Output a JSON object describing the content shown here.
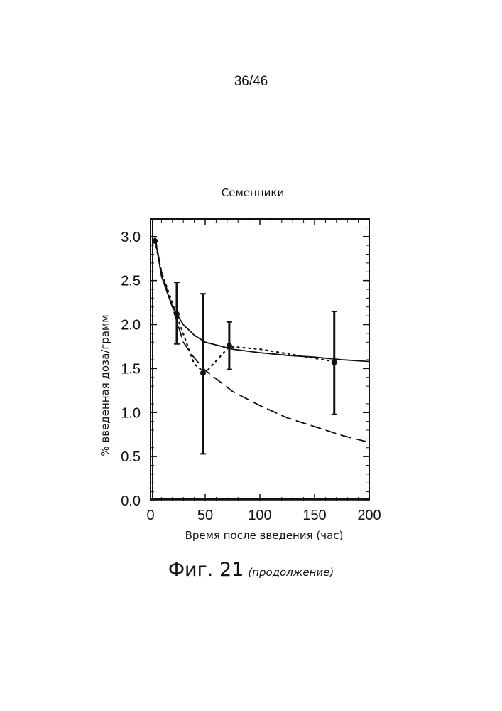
{
  "page": {
    "page_number": "36/46",
    "caption_figure": "Фиг. 21",
    "caption_note": "(продолжение)"
  },
  "chart_data": {
    "type": "scatter",
    "title": "Семенники",
    "xlabel": "Время после введения (час)",
    "ylabel": "% введенная доза/грамм",
    "xlim": [
      0,
      200
    ],
    "ylim": [
      0,
      3.2
    ],
    "x_ticks": [
      0,
      50,
      100,
      150,
      200
    ],
    "x_tick_labels": [
      "0",
      "50",
      "100",
      "150",
      "200"
    ],
    "y_ticks": [
      0,
      0.5,
      1.0,
      1.5,
      2.0,
      2.5,
      3.0
    ],
    "y_tick_labels": [
      "0.0",
      "0.5",
      "1.0",
      "1.5",
      "2.0",
      "2.5",
      "3.0"
    ],
    "grid": false,
    "series": [
      {
        "style": "solid",
        "x": [
          4,
          10,
          20,
          30,
          40,
          50,
          75,
          100,
          125,
          150,
          175,
          200
        ],
        "y": [
          3.0,
          2.55,
          2.2,
          2.0,
          1.88,
          1.8,
          1.72,
          1.68,
          1.65,
          1.63,
          1.6,
          1.58
        ]
      },
      {
        "style": "dashed",
        "x": [
          4,
          10,
          20,
          30,
          40,
          50,
          75,
          100,
          125,
          150,
          175,
          200
        ],
        "y": [
          3.0,
          2.6,
          2.2,
          1.8,
          1.62,
          1.48,
          1.24,
          1.08,
          0.94,
          0.84,
          0.74,
          0.66
        ]
      },
      {
        "style": "dotted",
        "x": [
          4,
          10,
          24,
          40,
          50,
          72,
          100,
          168
        ],
        "y": [
          2.95,
          2.6,
          2.1,
          1.55,
          1.45,
          1.75,
          1.72,
          1.58
        ]
      }
    ],
    "points": [
      {
        "x": 4,
        "y": 2.95,
        "err_low": 2.95,
        "err_high": 2.95
      },
      {
        "x": 24,
        "y": 2.12,
        "err_low": 1.78,
        "err_high": 2.48
      },
      {
        "x": 48,
        "y": 1.45,
        "err_low": 0.53,
        "err_high": 2.35
      },
      {
        "x": 72,
        "y": 1.76,
        "err_low": 1.49,
        "err_high": 2.03
      },
      {
        "x": 168,
        "y": 1.57,
        "err_low": 0.98,
        "err_high": 2.15
      }
    ]
  }
}
